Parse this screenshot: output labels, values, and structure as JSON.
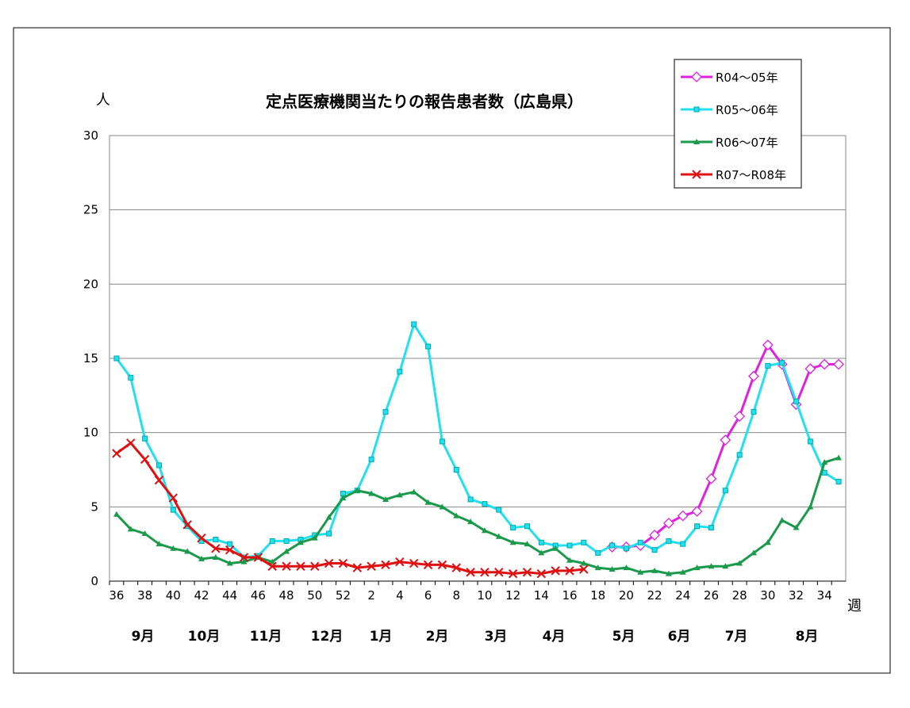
{
  "chart_data": {
    "type": "line",
    "title": "定点医療機関当たりの報告患者数（広島県）",
    "y_label": "人",
    "x_label": "週",
    "categories": [
      "36",
      null,
      "38",
      null,
      "40",
      null,
      "42",
      null,
      "44",
      null,
      "46",
      null,
      "48",
      null,
      "50",
      null,
      "52",
      null,
      "2",
      null,
      "4",
      null,
      "6",
      null,
      "8",
      null,
      "10",
      null,
      "12",
      null,
      "14",
      null,
      "16",
      null,
      "18",
      null,
      "20",
      null,
      "22",
      null,
      "24",
      null,
      "26",
      null,
      "28",
      null,
      "30",
      null,
      "32",
      null,
      "34",
      null
    ],
    "month_labels": [
      "9月",
      "10月",
      "11月",
      "12月",
      "1月",
      "2月",
      "3月",
      "4月",
      "5月",
      "6月",
      "7月",
      "8月"
    ],
    "ylim": [
      0,
      30
    ],
    "yticks": [
      0,
      5,
      10,
      15,
      20,
      25,
      30
    ],
    "grid": true,
    "legend": "upper right",
    "series": [
      {
        "name": "R04～05年",
        "color": "#e020e0",
        "marker": "diamond",
        "values": [
          null,
          null,
          null,
          null,
          null,
          null,
          null,
          null,
          null,
          null,
          null,
          null,
          null,
          null,
          null,
          null,
          null,
          null,
          null,
          null,
          null,
          null,
          null,
          null,
          null,
          null,
          null,
          null,
          null,
          null,
          null,
          null,
          null,
          null,
          null,
          2.3,
          2.3,
          2.4,
          3.1,
          3.9,
          4.4,
          4.7,
          6.9,
          9.5,
          11.1,
          13.8,
          15.9,
          14.6,
          11.9,
          14.3,
          14.6,
          14.6
        ]
      },
      {
        "name": "R05～06年",
        "color": "#22e0f0",
        "marker": "square",
        "values": [
          15.0,
          13.7,
          9.6,
          7.8,
          4.8,
          3.7,
          2.7,
          2.8,
          2.5,
          1.6,
          1.7,
          2.7,
          2.7,
          2.8,
          3.1,
          3.2,
          5.9,
          6.1,
          8.2,
          11.4,
          14.1,
          17.3,
          15.8,
          9.4,
          7.5,
          5.5,
          5.2,
          4.8,
          3.6,
          3.7,
          2.6,
          2.4,
          2.4,
          2.6,
          1.9,
          2.4,
          2.2,
          2.6,
          2.1,
          2.7,
          2.5,
          3.7,
          3.6,
          6.1,
          8.5,
          11.4,
          14.5,
          14.7,
          12.1,
          9.4,
          7.3,
          6.7
        ]
      },
      {
        "name": "R06～07年",
        "color": "#1a9a4a",
        "marker": "triangle",
        "values": [
          4.5,
          3.5,
          3.2,
          2.5,
          2.2,
          2.0,
          1.5,
          1.6,
          1.2,
          1.3,
          1.6,
          1.3,
          2.0,
          2.6,
          2.9,
          4.3,
          5.6,
          6.1,
          5.9,
          5.5,
          5.8,
          6.0,
          5.3,
          5.0,
          4.4,
          4.0,
          3.4,
          3.0,
          2.6,
          2.5,
          1.9,
          2.2,
          1.4,
          1.2,
          0.9,
          0.8,
          0.9,
          0.6,
          0.7,
          0.5,
          0.6,
          0.9,
          1.0,
          1.0,
          1.2,
          1.9,
          2.6,
          4.1,
          3.6,
          5.0,
          8.0,
          8.3
        ]
      },
      {
        "name": "R07～R08年",
        "color": "#e01010",
        "marker": "x",
        "values": [
          8.6,
          9.3,
          8.2,
          6.8,
          5.6,
          3.8,
          2.9,
          2.2,
          2.1,
          1.6,
          1.6,
          1.0,
          1.0,
          1.0,
          1.0,
          1.2,
          1.2,
          0.9,
          1.0,
          1.1,
          1.3,
          1.2,
          1.1,
          1.1,
          0.9,
          0.6,
          0.6,
          0.6,
          0.5,
          0.6,
          0.5,
          0.7,
          0.7,
          0.8,
          null,
          null,
          null,
          null,
          null,
          null,
          null,
          null,
          null,
          null,
          null,
          null,
          null,
          null,
          null,
          null,
          null,
          null
        ]
      }
    ]
  }
}
